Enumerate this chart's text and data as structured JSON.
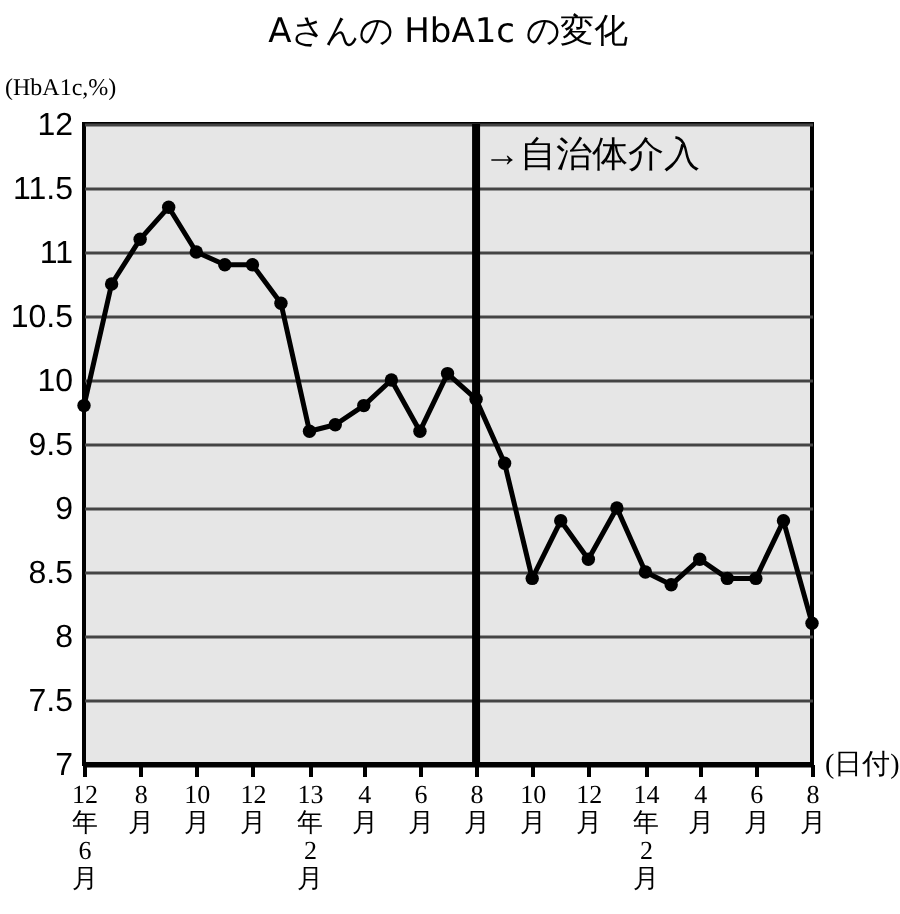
{
  "chart_data": {
    "type": "line",
    "title": "Aさんの HbA1c の変化",
    "ylabel": "(HbA1c,%)",
    "xlabel": "(日付)",
    "x": [
      "2012-06",
      "2012-07",
      "2012-08",
      "2012-09",
      "2012-10",
      "2012-11",
      "2012-12",
      "2013-01",
      "2013-02",
      "2013-03",
      "2013-04",
      "2013-05",
      "2013-06",
      "2013-07",
      "2013-08",
      "2013-09",
      "2013-10",
      "2013-11",
      "2013-12",
      "2014-01",
      "2014-02",
      "2014-03",
      "2014-04",
      "2014-05",
      "2014-06",
      "2014-07",
      "2014-08"
    ],
    "series": [
      {
        "color": "#000000",
        "values": [
          9.8,
          10.75,
          11.1,
          11.35,
          11.0,
          10.9,
          10.9,
          10.6,
          9.6,
          9.65,
          9.8,
          10.0,
          9.6,
          10.05,
          9.85,
          9.35,
          8.45,
          8.9,
          8.6,
          9.0,
          8.5,
          8.4,
          8.6,
          8.45,
          8.45,
          8.9,
          8.1
        ]
      }
    ],
    "xlim": [
      "2012-06",
      "2014-08"
    ],
    "xticks": [
      {
        "value": "2012-06",
        "label": "12年6月"
      },
      {
        "value": "2012-08",
        "label": "8月"
      },
      {
        "value": "2012-10",
        "label": "10月"
      },
      {
        "value": "2012-12",
        "label": "12月"
      },
      {
        "value": "2013-02",
        "label": "13年2月"
      },
      {
        "value": "2013-04",
        "label": "4月"
      },
      {
        "value": "2013-06",
        "label": "6月"
      },
      {
        "value": "2013-08",
        "label": "8月"
      },
      {
        "value": "2013-10",
        "label": "10月"
      },
      {
        "value": "2013-12",
        "label": "12月"
      },
      {
        "value": "2014-02",
        "label": "14年2月"
      },
      {
        "value": "2014-04",
        "label": "4月"
      },
      {
        "value": "2014-06",
        "label": "6月"
      },
      {
        "value": "2014-08",
        "label": "8月"
      }
    ],
    "ylim": [
      7,
      12
    ],
    "yticks": [
      7,
      7.5,
      8,
      8.5,
      9,
      9.5,
      10,
      10.5,
      11,
      11.5,
      12
    ],
    "grid": "y",
    "marker": "circle",
    "line_style": "solid",
    "ref_lines": [
      {
        "axis": "x",
        "value": "2013-08",
        "label": "→自治体介入",
        "color": "#000000"
      }
    ]
  }
}
